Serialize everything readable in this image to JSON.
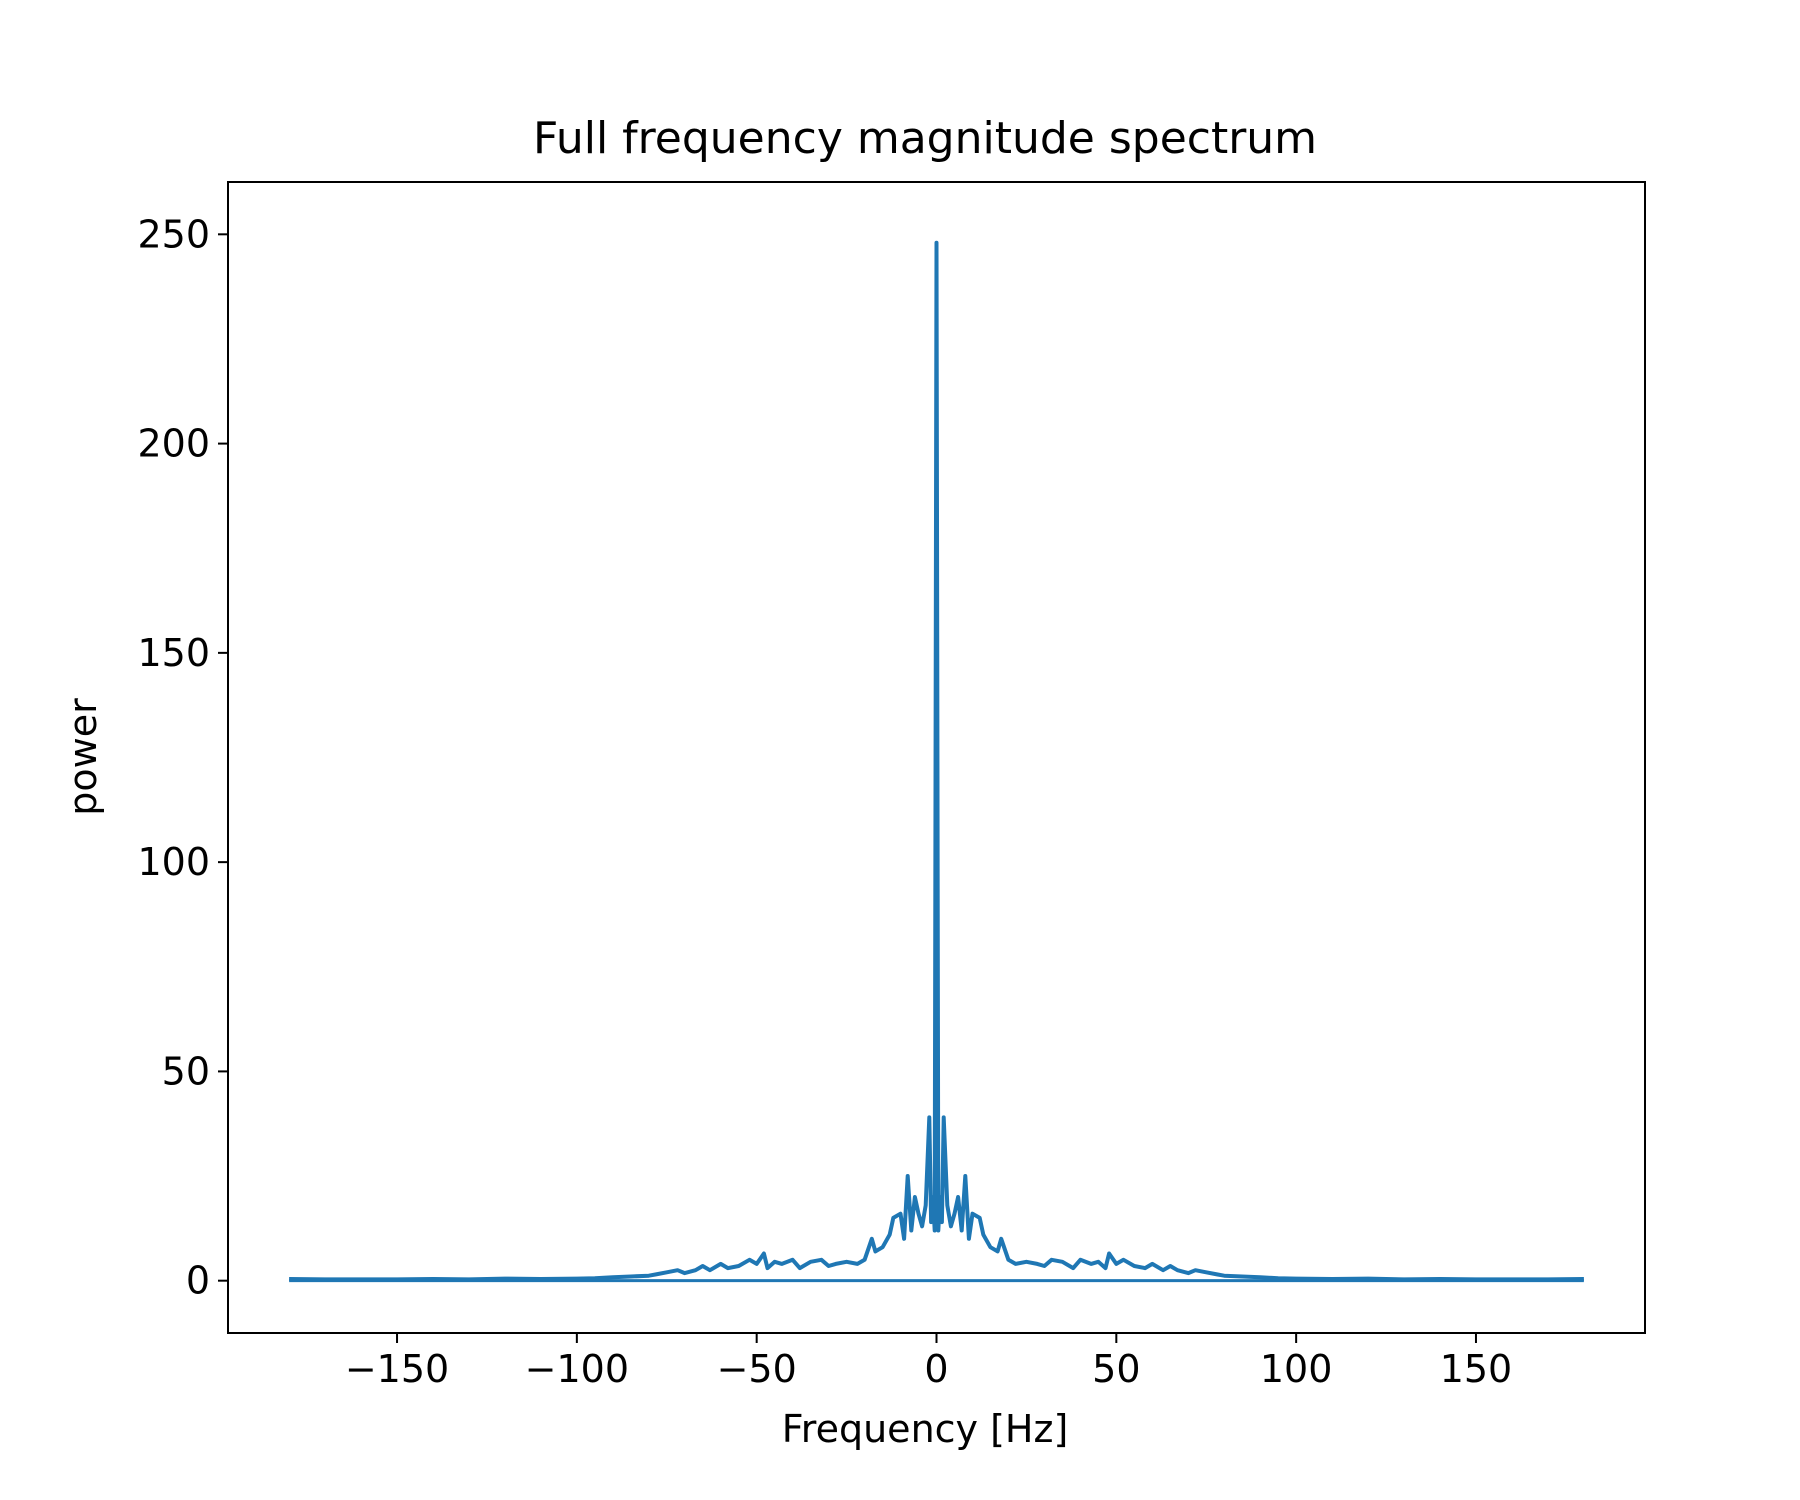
{
  "chart_data": {
    "type": "line",
    "title": "Full frequency magnitude spectrum",
    "xlabel": "Frequency [Hz]",
    "ylabel": "power",
    "xlim": [
      -197,
      197
    ],
    "ylim": [
      -12.5,
      262.5
    ],
    "xticks": [
      -150,
      -100,
      -50,
      0,
      50,
      100,
      150
    ],
    "xtick_labels": [
      "−150",
      "−100",
      "−50",
      "0",
      "50",
      "100",
      "150"
    ],
    "yticks": [
      0,
      50,
      100,
      150,
      200,
      250
    ],
    "ytick_labels": [
      "0",
      "50",
      "100",
      "150",
      "200",
      "250"
    ],
    "grid": false,
    "series": [
      {
        "color": "#1f77b4",
        "x": [
          -180,
          -170,
          -160,
          -150,
          -140,
          -130,
          -120,
          -110,
          -100,
          -95,
          -90,
          -85,
          -80,
          -78,
          -75,
          -72,
          -70,
          -67,
          -65,
          -63,
          -60,
          -58,
          -55,
          -52,
          -50,
          -48,
          -47,
          -45,
          -43,
          -40,
          -38,
          -35,
          -32,
          -30,
          -28,
          -25,
          -22,
          -20,
          -18,
          -17,
          -15,
          -13,
          -12,
          -10,
          -9,
          -8,
          -7,
          -6,
          -5,
          -4,
          -3,
          -2,
          -1.5,
          -1,
          -0.5,
          0,
          0.5,
          1,
          1.5,
          2,
          3,
          4,
          5,
          6,
          7,
          8,
          9,
          10,
          12,
          13,
          15,
          17,
          18,
          20,
          22,
          25,
          28,
          30,
          32,
          35,
          38,
          40,
          43,
          45,
          47,
          48,
          50,
          52,
          55,
          58,
          60,
          63,
          65,
          67,
          70,
          72,
          75,
          78,
          80,
          85,
          90,
          95,
          100,
          110,
          120,
          130,
          140,
          150,
          160,
          170,
          180
        ],
        "y": [
          0.4,
          0.3,
          0.3,
          0.3,
          0.4,
          0.3,
          0.5,
          0.4,
          0.5,
          0.6,
          0.8,
          1,
          1.2,
          1.5,
          2,
          2.5,
          1.8,
          2.5,
          3.5,
          2.5,
          4,
          3,
          3.5,
          5,
          4,
          6.5,
          3,
          4.5,
          4,
          5,
          3,
          4.5,
          5,
          3.5,
          4,
          4.5,
          4,
          5,
          10,
          7,
          8,
          11,
          15,
          16,
          10,
          25,
          12,
          20,
          16,
          13,
          18,
          39,
          14,
          20,
          12,
          248,
          12,
          20,
          14,
          39,
          18,
          13,
          16,
          20,
          12,
          25,
          10,
          16,
          15,
          11,
          8,
          7,
          10,
          5,
          4,
          4.5,
          4,
          3.5,
          5,
          4.5,
          3,
          5,
          4,
          4.5,
          3,
          6.5,
          4,
          5,
          3.5,
          3,
          4,
          2.5,
          3.5,
          2.5,
          1.8,
          2.5,
          2,
          1.5,
          1.2,
          1,
          0.8,
          0.6,
          0.5,
          0.4,
          0.5,
          0.3,
          0.4,
          0.3,
          0.3,
          0.3,
          0.4
        ]
      }
    ]
  }
}
